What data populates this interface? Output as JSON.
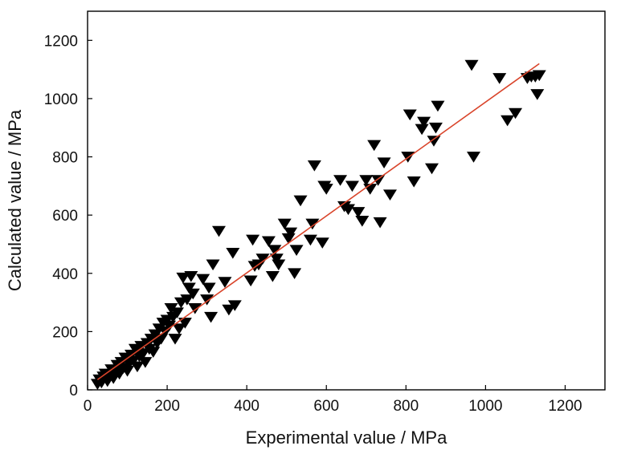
{
  "chart_data": {
    "type": "scatter",
    "xlabel": "Experimental value / MPa",
    "ylabel": "Calculated value / MPa",
    "xlim": [
      0,
      1300
    ],
    "ylim": [
      0,
      1300
    ],
    "xticks": [
      0,
      200,
      400,
      600,
      800,
      1000,
      1200
    ],
    "yticks": [
      0,
      200,
      400,
      600,
      800,
      1000,
      1200
    ],
    "grid": false,
    "marker": "downward-triangle",
    "marker_color": "#000000",
    "fit_line": {
      "color": "#d9442a",
      "x": [
        25,
        1135
      ],
      "y": [
        35,
        1120
      ]
    },
    "series": [
      {
        "points": [
          [
            25,
            20
          ],
          [
            30,
            35
          ],
          [
            35,
            25
          ],
          [
            40,
            45
          ],
          [
            45,
            55
          ],
          [
            50,
            30
          ],
          [
            55,
            50
          ],
          [
            60,
            70
          ],
          [
            65,
            40
          ],
          [
            70,
            60
          ],
          [
            75,
            85
          ],
          [
            80,
            55
          ],
          [
            85,
            95
          ],
          [
            90,
            75
          ],
          [
            95,
            110
          ],
          [
            100,
            65
          ],
          [
            105,
            90
          ],
          [
            110,
            120
          ],
          [
            115,
            100
          ],
          [
            120,
            140
          ],
          [
            125,
            80
          ],
          [
            130,
            115
          ],
          [
            135,
            150
          ],
          [
            140,
            125
          ],
          [
            145,
            95
          ],
          [
            150,
            160
          ],
          [
            155,
            140
          ],
          [
            160,
            175
          ],
          [
            165,
            130
          ],
          [
            170,
            190
          ],
          [
            175,
            160
          ],
          [
            180,
            210
          ],
          [
            185,
            175
          ],
          [
            190,
            230
          ],
          [
            195,
            200
          ],
          [
            200,
            240
          ],
          [
            205,
            220
          ],
          [
            210,
            280
          ],
          [
            215,
            250
          ],
          [
            220,
            175
          ],
          [
            225,
            265
          ],
          [
            230,
            210
          ],
          [
            235,
            300
          ],
          [
            240,
            385
          ],
          [
            245,
            230
          ],
          [
            250,
            310
          ],
          [
            255,
            350
          ],
          [
            260,
            390
          ],
          [
            265,
            330
          ],
          [
            270,
            280
          ],
          [
            290,
            380
          ],
          [
            300,
            310
          ],
          [
            305,
            350
          ],
          [
            310,
            250
          ],
          [
            315,
            430
          ],
          [
            330,
            545
          ],
          [
            345,
            370
          ],
          [
            355,
            275
          ],
          [
            365,
            470
          ],
          [
            370,
            290
          ],
          [
            410,
            375
          ],
          [
            415,
            515
          ],
          [
            420,
            425
          ],
          [
            430,
            430
          ],
          [
            440,
            450
          ],
          [
            455,
            510
          ],
          [
            465,
            390
          ],
          [
            470,
            480
          ],
          [
            475,
            450
          ],
          [
            480,
            430
          ],
          [
            495,
            570
          ],
          [
            505,
            520
          ],
          [
            510,
            540
          ],
          [
            520,
            400
          ],
          [
            525,
            480
          ],
          [
            535,
            650
          ],
          [
            560,
            515
          ],
          [
            565,
            570
          ],
          [
            570,
            770
          ],
          [
            590,
            505
          ],
          [
            595,
            700
          ],
          [
            600,
            690
          ],
          [
            635,
            720
          ],
          [
            645,
            630
          ],
          [
            655,
            620
          ],
          [
            665,
            700
          ],
          [
            680,
            610
          ],
          [
            690,
            580
          ],
          [
            700,
            720
          ],
          [
            710,
            690
          ],
          [
            720,
            840
          ],
          [
            730,
            720
          ],
          [
            735,
            575
          ],
          [
            745,
            780
          ],
          [
            760,
            670
          ],
          [
            805,
            800
          ],
          [
            810,
            945
          ],
          [
            820,
            715
          ],
          [
            840,
            895
          ],
          [
            845,
            920
          ],
          [
            865,
            760
          ],
          [
            870,
            855
          ],
          [
            875,
            900
          ],
          [
            880,
            975
          ],
          [
            965,
            1115
          ],
          [
            970,
            800
          ],
          [
            1035,
            1070
          ],
          [
            1055,
            925
          ],
          [
            1075,
            950
          ],
          [
            1105,
            1070
          ],
          [
            1115,
            1075
          ],
          [
            1125,
            1075
          ],
          [
            1130,
            1015
          ],
          [
            1135,
            1080
          ]
        ]
      }
    ]
  }
}
